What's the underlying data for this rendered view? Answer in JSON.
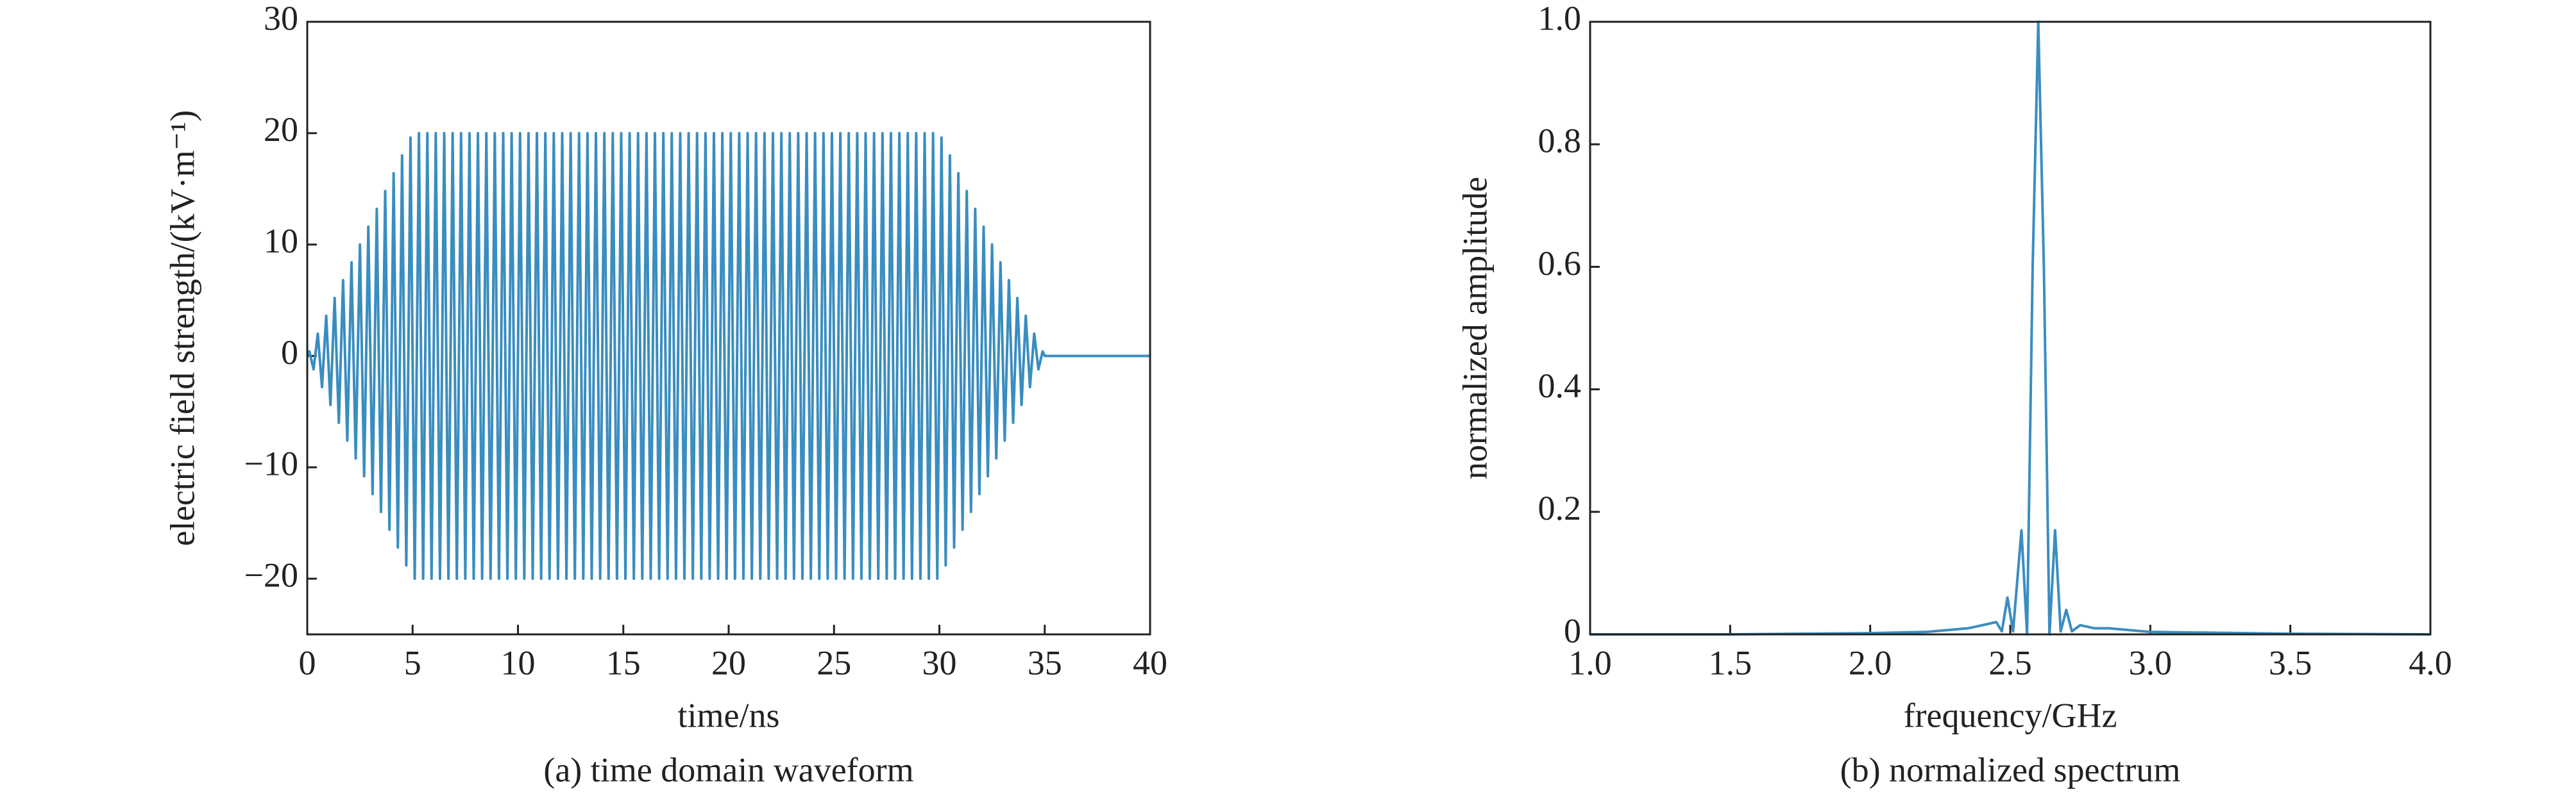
{
  "chart_data": [
    {
      "type": "line",
      "caption": "(a) time domain waveform",
      "xlabel": "time/ns",
      "ylabel": "electric field strength/(kV·m⁻¹)",
      "color": "#3a8dc0",
      "x": [
        0,
        0.1,
        0.3,
        0.5,
        0.7,
        0.9,
        1.1,
        1.3,
        1.5,
        1.7,
        1.9,
        2.1,
        2.3,
        2.5,
        2.7,
        2.9,
        3.1,
        3.3,
        3.5,
        3.7,
        3.9,
        4.1,
        4.3,
        4.5,
        4.7,
        4.9,
        5.1,
        5.3,
        5.5,
        5.7,
        5.9,
        6.1,
        6.3,
        6.5,
        6.7,
        6.9,
        7.1,
        7.3,
        7.5,
        7.7,
        7.9,
        8.1,
        8.3,
        8.5,
        8.7,
        8.9,
        9.1,
        9.3,
        9.5,
        9.7,
        9.9,
        10.1,
        10.3,
        10.5,
        10.7,
        10.9,
        11.1,
        11.3,
        11.5,
        11.7,
        11.9,
        12.1,
        12.3,
        12.5,
        12.7,
        12.9,
        13.1,
        13.3,
        13.5,
        13.7,
        13.9,
        14.1,
        14.3,
        14.5,
        14.7,
        14.9,
        15.1,
        15.3,
        15.5,
        15.7,
        15.9,
        16.1,
        16.3,
        16.5,
        16.7,
        16.9,
        17.1,
        17.3,
        17.5,
        17.7,
        17.9,
        18.1,
        18.3,
        18.5,
        18.7,
        18.9,
        19.1,
        19.3,
        19.5,
        19.7,
        19.9,
        20.1,
        20.3,
        20.5,
        20.7,
        20.9,
        21.1,
        21.3,
        21.5,
        21.7,
        21.9,
        22.1,
        22.3,
        22.5,
        22.7,
        22.9,
        23.1,
        23.3,
        23.5,
        23.7,
        23.9,
        24.1,
        24.3,
        24.5,
        24.7,
        24.9,
        25.1,
        25.3,
        25.5,
        25.7,
        25.9,
        26.1,
        26.3,
        26.5,
        26.7,
        26.9,
        27.1,
        27.3,
        27.5,
        27.7,
        27.9,
        28.1,
        28.3,
        28.5,
        28.7,
        28.9,
        29.1,
        29.3,
        29.5,
        29.7,
        29.9,
        30.1,
        30.3,
        30.5,
        30.7,
        30.9,
        31.1,
        31.3,
        31.5,
        31.7,
        31.9,
        32.1,
        32.3,
        32.5,
        32.7,
        32.9,
        33.1,
        33.3,
        33.5,
        33.7,
        33.9,
        34.1,
        34.3,
        34.5,
        34.7,
        34.9,
        35,
        40
      ],
      "values": [
        0,
        0.4,
        -1.2,
        2,
        -2.8,
        3.6,
        -4.4,
        5.2,
        -6,
        6.8,
        -7.6,
        8.4,
        -9.2,
        10,
        -10.8,
        11.6,
        -12.4,
        13.2,
        -14,
        14.8,
        -15.6,
        16.4,
        -17.2,
        18,
        -18.8,
        19.6,
        -20,
        20,
        -20,
        20,
        -20,
        20,
        -20,
        20,
        -20,
        20,
        -20,
        20,
        -20,
        20,
        -20,
        20,
        -20,
        20,
        -20,
        20,
        -20,
        20,
        -20,
        20,
        -20,
        20,
        -20,
        20,
        -20,
        20,
        -20,
        20,
        -20,
        20,
        -20,
        20,
        -20,
        20,
        -20,
        20,
        -20,
        20,
        -20,
        20,
        -20,
        20,
        -20,
        20,
        -20,
        20,
        -20,
        20,
        -20,
        20,
        -20,
        20,
        -20,
        20,
        -20,
        20,
        -20,
        20,
        -20,
        20,
        -20,
        20,
        -20,
        20,
        -20,
        20,
        -20,
        20,
        -20,
        20,
        -20,
        20,
        -20,
        20,
        -20,
        20,
        -20,
        20,
        -20,
        20,
        -20,
        20,
        -20,
        20,
        -20,
        20,
        -20,
        20,
        -20,
        20,
        -20,
        20,
        -20,
        20,
        -20,
        20,
        -20,
        20,
        -20,
        20,
        -20,
        20,
        -20,
        20,
        -20,
        20,
        -20,
        20,
        -20,
        20,
        -20,
        20,
        -20,
        20,
        -20,
        20,
        -20,
        20,
        -20,
        20,
        -20,
        19.6,
        -18.8,
        18,
        -17.2,
        16.4,
        -15.6,
        14.8,
        -14,
        13.2,
        -12.4,
        11.6,
        -10.8,
        10,
        -9.2,
        8.4,
        -7.6,
        6.8,
        -6,
        5.2,
        -4.4,
        3.6,
        -2.8,
        2,
        -1.2,
        0.4,
        0,
        0
      ],
      "xlim": [
        0,
        40
      ],
      "xticks": [
        0,
        5,
        10,
        15,
        20,
        25,
        30,
        35,
        40
      ],
      "ylim": [
        -25,
        30
      ],
      "yticks": [
        {
          "value": -20,
          "label": "−20"
        },
        {
          "value": -10,
          "label": "−10"
        },
        0,
        10,
        20,
        30
      ]
    },
    {
      "type": "line",
      "caption": "(b) normalized spectrum",
      "xlabel": "frequency/GHz",
      "ylabel": "normalized amplitude",
      "color": "#3a8dc0",
      "x": [
        1.0,
        1.5,
        2.0,
        2.2,
        2.3,
        2.35,
        2.4,
        2.45,
        2.47,
        2.49,
        2.51,
        2.54,
        2.56,
        2.58,
        2.6,
        2.62,
        2.64,
        2.66,
        2.68,
        2.7,
        2.72,
        2.75,
        2.8,
        2.85,
        2.9,
        3.0,
        3.5,
        4.0
      ],
      "values": [
        0,
        0,
        0.002,
        0.004,
        0.008,
        0.01,
        0.015,
        0.02,
        0.005,
        0.06,
        0.005,
        0.17,
        0,
        0.6,
        1.0,
        0.6,
        0,
        0.17,
        0.005,
        0.04,
        0.005,
        0.015,
        0.01,
        0.01,
        0.008,
        0.004,
        0.001,
        0
      ],
      "xlim": [
        1.0,
        4.0
      ],
      "xticks": [
        {
          "value": 1,
          "label": "1.0"
        },
        1.5,
        {
          "value": 2,
          "label": "2.0"
        },
        2.5,
        {
          "value": 3,
          "label": "3.0"
        },
        3.5,
        {
          "value": 4,
          "label": "4.0"
        }
      ],
      "ylim": [
        0,
        1.0
      ],
      "yticks": [
        0,
        0.2,
        0.4,
        0.6,
        0.8,
        {
          "value": 1,
          "label": "1.0"
        }
      ]
    }
  ]
}
